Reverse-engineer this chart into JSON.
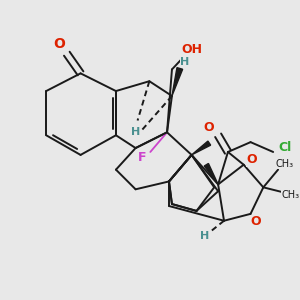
{
  "bg_color": "#e8e8e8",
  "bond_color": "#1a1a1a",
  "bond_width": 1.4,
  "dbo": 0.008,
  "figsize": [
    3.0,
    3.0
  ],
  "dpi": 100,
  "xlim": [
    0,
    300
  ],
  "ylim": [
    0,
    300
  ]
}
